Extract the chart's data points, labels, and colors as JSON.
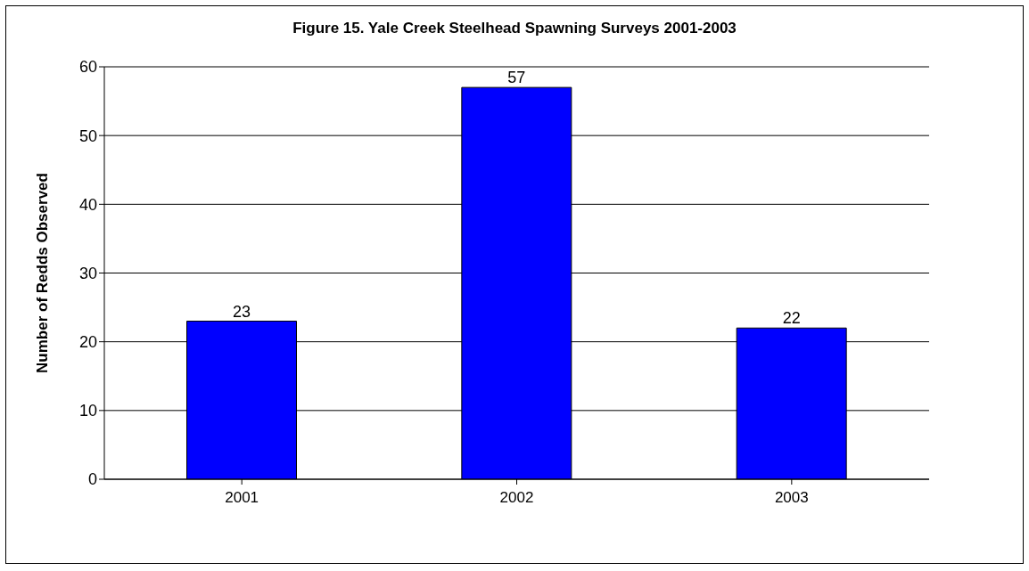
{
  "chart_data": {
    "type": "bar",
    "title": "Figure 15.  Yale Creek Steelhead Spawning Surveys 2001-2003",
    "ylabel": "Number of Redds Observed",
    "categories": [
      "2001",
      "2002",
      "2003"
    ],
    "values": [
      23,
      57,
      22
    ],
    "color": "#0000ff",
    "ylim": [
      0,
      60
    ],
    "yticks": [
      0,
      10,
      20,
      30,
      40,
      50,
      60
    ],
    "grid": "y",
    "data_labels": true
  }
}
